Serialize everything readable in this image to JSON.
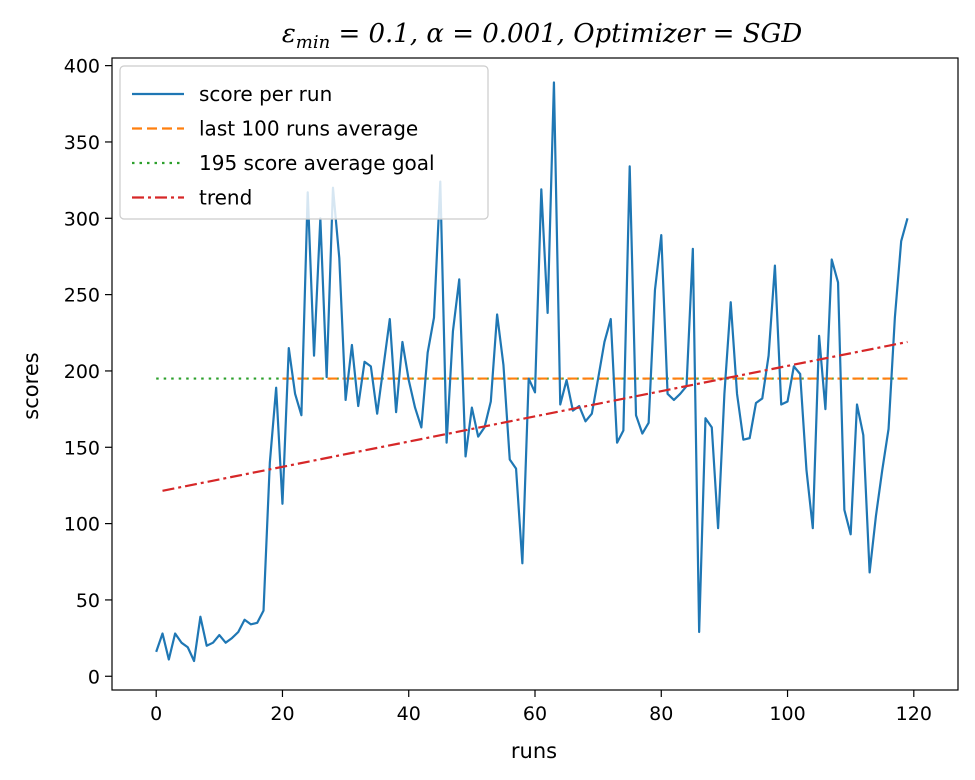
{
  "chart_data": {
    "type": "line",
    "title": "εmin = 0.1, α = 0.001, Optimizer = SGD",
    "title_parts": {
      "eps": "ε",
      "eps_sub": "min",
      "rest": " = 0.1, α = 0.001, Optimizer = SGD"
    },
    "xlabel": "runs",
    "ylabel": "scores",
    "xlim": [
      -7,
      127
    ],
    "ylim": [
      -9,
      405
    ],
    "xticks": [
      0,
      20,
      40,
      60,
      80,
      100,
      120
    ],
    "yticks": [
      0,
      50,
      100,
      150,
      200,
      250,
      300,
      350,
      400
    ],
    "grid": false,
    "legend_position": "top-left",
    "series": [
      {
        "name": "score per run",
        "style": "solid",
        "color": "#1f77b4",
        "x": [
          0,
          1,
          2,
          3,
          4,
          5,
          6,
          7,
          8,
          9,
          10,
          11,
          12,
          13,
          14,
          15,
          16,
          17,
          18,
          19,
          20,
          21,
          22,
          23,
          24,
          25,
          26,
          27,
          28,
          29,
          30,
          31,
          32,
          33,
          34,
          35,
          36,
          37,
          38,
          39,
          40,
          41,
          42,
          43,
          44,
          45,
          46,
          47,
          48,
          49,
          50,
          51,
          52,
          53,
          54,
          55,
          56,
          57,
          58,
          59,
          60,
          61,
          62,
          63,
          64,
          65,
          66,
          67,
          68,
          69,
          70,
          71,
          72,
          73,
          74,
          75,
          76,
          77,
          78,
          79,
          80,
          81,
          82,
          83,
          84,
          85,
          86,
          87,
          88,
          89,
          90,
          91,
          92,
          93,
          94,
          95,
          96,
          97,
          98,
          99,
          100,
          101,
          102,
          103,
          104,
          105,
          106,
          107,
          108,
          109,
          110,
          111,
          112,
          113,
          114,
          115,
          116,
          117,
          118,
          119
        ],
        "values": [
          16,
          28,
          11,
          28,
          22,
          19,
          10,
          39,
          20,
          22,
          27,
          22,
          25,
          29,
          37,
          34,
          35,
          43,
          140,
          189,
          113,
          215,
          185,
          171,
          317,
          210,
          300,
          196,
          320,
          274,
          181,
          217,
          177,
          206,
          203,
          172,
          203,
          234,
          173,
          219,
          194,
          176,
          163,
          212,
          235,
          324,
          153,
          226,
          260,
          144,
          176,
          157,
          163,
          180,
          237,
          204,
          142,
          136,
          74,
          195,
          186,
          319,
          238,
          389,
          178,
          194,
          174,
          177,
          167,
          172,
          195,
          219,
          234,
          153,
          161,
          334,
          171,
          159,
          166,
          253,
          289,
          185,
          181,
          185,
          190,
          280,
          29,
          169,
          163,
          97,
          185,
          245,
          185,
          155,
          156,
          179,
          182,
          210,
          269,
          178,
          180,
          203,
          198,
          135,
          97,
          223,
          175,
          273,
          258,
          109,
          93,
          178,
          158,
          68,
          105,
          135,
          162,
          235,
          285,
          300
        ]
      },
      {
        "name": "last 100 runs average",
        "style": "dashed",
        "color": "#ff7f0e",
        "x": [
          20,
          119
        ],
        "values": [
          195,
          195
        ]
      },
      {
        "name": "195 score average goal",
        "style": "dotted",
        "color": "#2ca02c",
        "x": [
          0,
          119
        ],
        "values": [
          195,
          195
        ]
      },
      {
        "name": "trend",
        "style": "dashdot",
        "color": "#d62728",
        "x": [
          1,
          119
        ],
        "values": [
          121.5,
          219
        ]
      }
    ]
  }
}
